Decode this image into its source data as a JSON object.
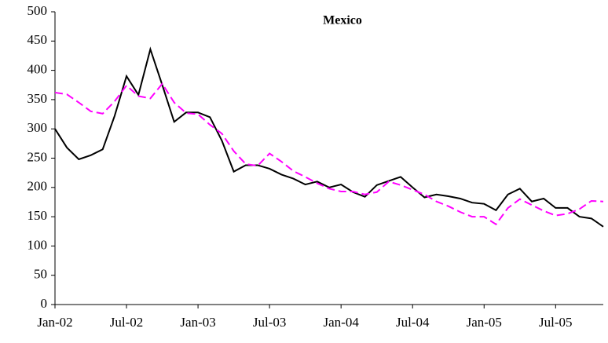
{
  "chart_data": {
    "type": "line",
    "title": "Mexico",
    "categories": [
      "Jan-02",
      null,
      null,
      null,
      null,
      null,
      "Jul-02",
      null,
      null,
      null,
      null,
      null,
      "Jan-03",
      null,
      null,
      null,
      null,
      null,
      "Jul-03",
      null,
      null,
      null,
      null,
      null,
      "Jan-04",
      null,
      null,
      null,
      null,
      null,
      "Jul-04",
      null,
      null,
      null,
      null,
      null,
      "Jan-05",
      null,
      null,
      null,
      null,
      null,
      "Jul-05",
      null,
      null,
      null,
      null
    ],
    "series": [
      {
        "color": "#000000",
        "dash": false,
        "values": [
          300,
          268,
          248,
          255,
          265,
          322,
          390,
          358,
          436,
          375,
          312,
          328,
          328,
          320,
          280,
          227,
          238,
          238,
          232,
          222,
          215,
          205,
          210,
          200,
          205,
          192,
          184,
          204,
          211,
          218,
          200,
          183,
          188,
          185,
          181,
          174,
          172,
          161,
          188,
          198,
          176,
          181,
          165,
          165,
          150,
          147,
          133
        ]
      },
      {
        "color": "#ff00ff",
        "dash": true,
        "values": [
          362,
          359,
          345,
          330,
          326,
          347,
          374,
          356,
          352,
          377,
          345,
          327,
          325,
          307,
          292,
          262,
          240,
          237,
          258,
          244,
          228,
          218,
          207,
          198,
          193,
          193,
          188,
          192,
          210,
          204,
          196,
          188,
          176,
          168,
          158,
          150,
          150,
          137,
          165,
          180,
          170,
          160,
          152,
          155,
          163,
          177,
          176
        ]
      }
    ],
    "ylim": [
      0,
      500
    ],
    "yticks": [
      0,
      50,
      100,
      150,
      200,
      250,
      300,
      350,
      400,
      450,
      500
    ]
  }
}
